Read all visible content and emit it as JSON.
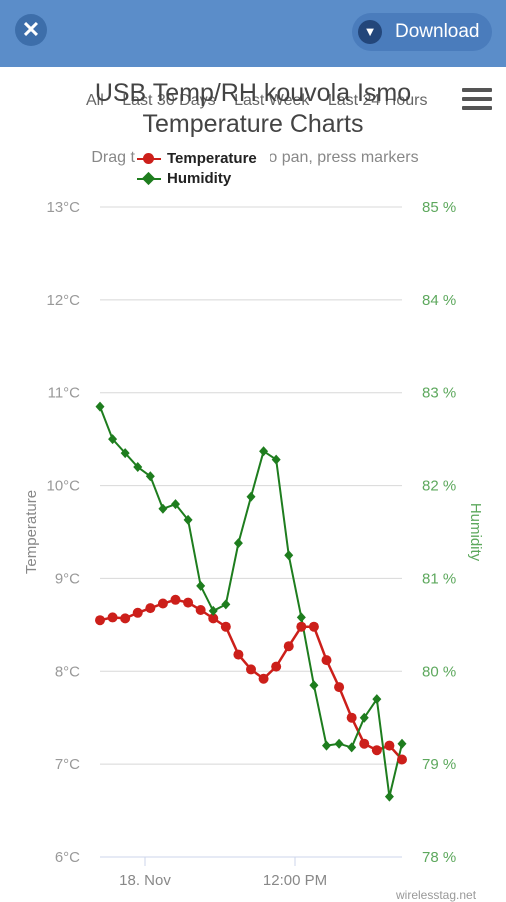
{
  "header": {
    "close_icon": "x-icon",
    "download_label": "Download",
    "download_icon": "chevron-down-icon"
  },
  "range_nav": [
    "All",
    "Last 30 Days",
    "Last Week",
    "Last 24 Hours"
  ],
  "subtitle": "Drag to zoom, and drag to pan, press markers",
  "credits": "wirelesstag.net",
  "colors": {
    "header": "#5b8dc9",
    "temperature": "#cc1f1a",
    "humidity": "#1e7d1e",
    "humidity_axis": "#5da85d"
  },
  "chart_data": {
    "type": "line",
    "title": "USB Temp/RH kouvola Ismo Temperature Charts",
    "x_ticks": [
      "18. Nov",
      "12:00 PM"
    ],
    "y_left": {
      "label": "Temperature",
      "ticks": [
        "6°C",
        "7°C",
        "8°C",
        "9°C",
        "10°C",
        "11°C",
        "12°C",
        "13°C"
      ],
      "range": [
        6,
        13
      ]
    },
    "y_right": {
      "label": "Humidity",
      "ticks": [
        "78 %",
        "79 %",
        "80 %",
        "81 %",
        "82 %",
        "83 %",
        "84 %",
        "85 %"
      ],
      "range": [
        78,
        85
      ]
    },
    "x_range": [
      0,
      24
    ],
    "grid": true,
    "legend_position": "top-left",
    "series": [
      {
        "name": "Temperature",
        "axis": "left",
        "x": [
          0,
          1,
          2,
          3,
          4,
          5,
          6,
          7,
          8,
          9,
          10,
          11,
          12,
          13,
          14,
          15,
          16,
          17,
          18,
          19,
          20,
          21,
          22,
          23,
          24
        ],
        "values": [
          8.55,
          8.58,
          8.57,
          8.63,
          8.68,
          8.73,
          8.77,
          8.74,
          8.66,
          8.57,
          8.48,
          8.18,
          8.02,
          7.92,
          8.05,
          8.27,
          8.48,
          8.48,
          8.12,
          7.83,
          7.5,
          7.22,
          7.15,
          7.2,
          7.05
        ]
      },
      {
        "name": "Humidity",
        "axis": "right",
        "x": [
          0,
          1,
          2,
          3,
          4,
          5,
          6,
          7,
          8,
          9,
          10,
          11,
          12,
          13,
          14,
          15,
          16,
          17,
          18,
          19,
          20,
          21,
          22,
          23,
          24
        ],
        "values": [
          82.85,
          82.5,
          82.35,
          82.2,
          82.1,
          81.75,
          81.8,
          81.63,
          80.92,
          80.65,
          80.72,
          81.38,
          81.88,
          82.37,
          82.28,
          81.25,
          80.58,
          79.85,
          79.2,
          79.22,
          79.18,
          79.5,
          79.7,
          78.65,
          79.22
        ]
      }
    ]
  }
}
